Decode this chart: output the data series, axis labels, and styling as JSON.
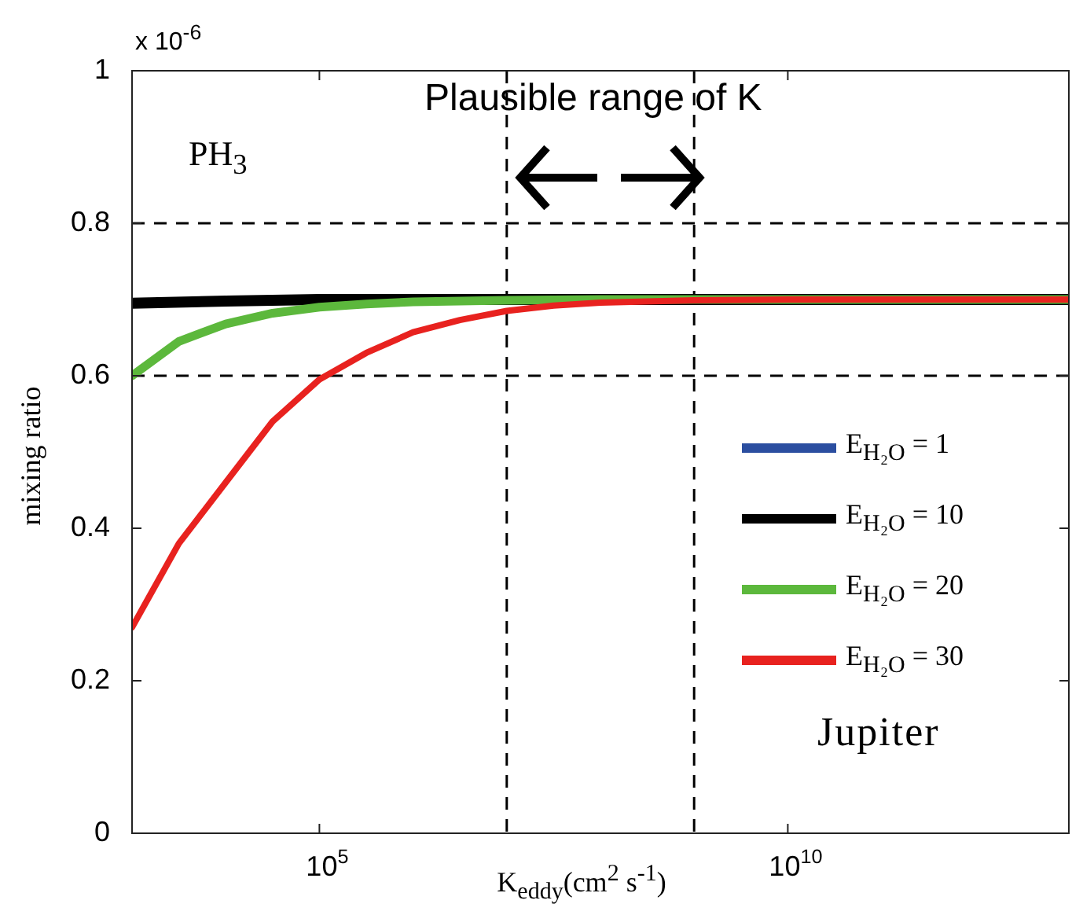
{
  "chart_data": {
    "type": "line",
    "xlabel": "K$_{eddy}$(cm$^{2}$ s$^{-1}$)",
    "ylabel": "mixing ratio",
    "annotations": [
      "x 10$^{-6}$",
      "Plausible range of K",
      "PH$_{3}$",
      "Jupiter"
    ],
    "log": "x",
    "xlim": [
      1000,
      10000000000000
    ],
    "xticks": [
      {
        "value": 100000,
        "label": "10$^{5}$"
      },
      {
        "value": 10000000000,
        "label": "10$^{10}$"
      }
    ],
    "ylim": [
      0,
      1
    ],
    "yticks": [
      0,
      0.2,
      0.4,
      0.6,
      0.8,
      1
    ],
    "legend": "right",
    "marker": "none",
    "line_style": "solid",
    "ref_lines": [
      {
        "axis": "y",
        "value": 0.8,
        "color": "#000000",
        "line_style": "dashed"
      },
      {
        "axis": "y",
        "value": 0.6,
        "color": "#000000",
        "line_style": "dashed"
      },
      {
        "axis": "x",
        "value": 10000000,
        "color": "#000000",
        "line_style": "dashed"
      },
      {
        "axis": "x",
        "value": 1000000000,
        "color": "#000000",
        "line_style": "dashed"
      }
    ],
    "series": [
      {
        "name": "E$_{H₂O}$ = 1",
        "color": "#2b4ea0"
      },
      {
        "name": "E$_{H₂O}$ = 10",
        "color": "#000000",
        "x": [
          1000,
          10000,
          100000,
          10000000000000
        ],
        "values": [
          0.695,
          0.698,
          0.7,
          0.7
        ]
      },
      {
        "name": "E$_{H₂O}$ = 20",
        "color": "#5cb83c",
        "x": [
          1000,
          3162,
          10000,
          31623,
          100000,
          316228,
          1000000,
          10000000,
          100000000,
          10000000000000
        ],
        "values": [
          0.6,
          0.645,
          0.668,
          0.682,
          0.69,
          0.694,
          0.697,
          0.699,
          0.7,
          0.7
        ]
      },
      {
        "name": "E$_{H₂O}$ = 30",
        "color": "#e8221f",
        "x": [
          1000,
          3162,
          10000,
          31623,
          100000,
          316228,
          1000000,
          3162278,
          10000000,
          31622777,
          100000000,
          1000000000,
          10000000000,
          10000000000000
        ],
        "values": [
          0.27,
          0.38,
          0.46,
          0.54,
          0.595,
          0.63,
          0.657,
          0.673,
          0.685,
          0.692,
          0.696,
          0.699,
          0.7,
          0.7
        ]
      }
    ]
  }
}
